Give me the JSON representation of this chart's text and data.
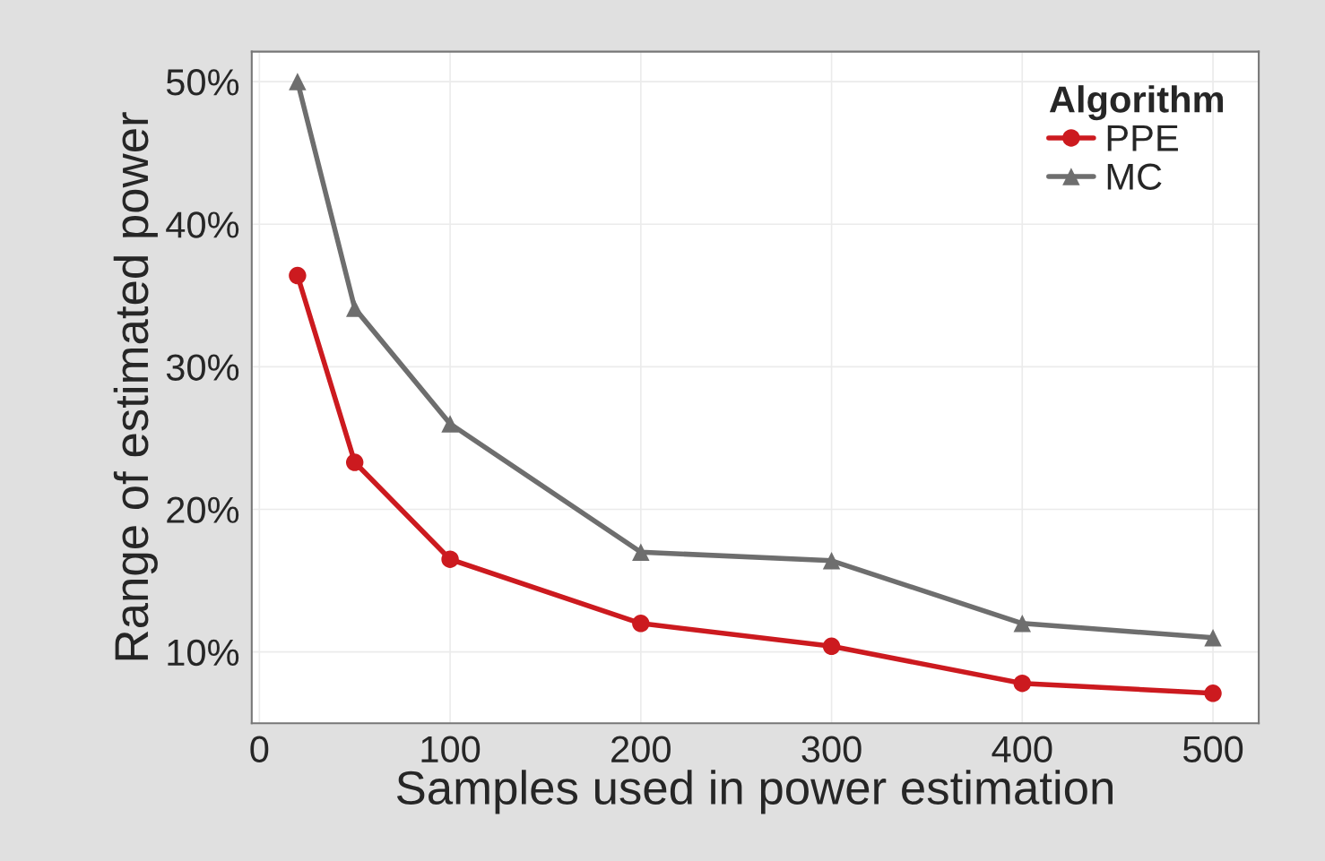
{
  "chart_data": {
    "type": "line",
    "xlabel": "Samples used in power estimation",
    "ylabel": "Range of estimated power",
    "legend_title": "Algorithm",
    "legend": "top right",
    "grid": true,
    "x": [
      20,
      50,
      100,
      200,
      300,
      400,
      500
    ],
    "series": [
      {
        "name": "PPE",
        "color": "#cc1a1f",
        "marker": "circle",
        "values": [
          36.4,
          23.3,
          16.5,
          12.0,
          10.4,
          7.8,
          7.1
        ]
      },
      {
        "name": "MC",
        "color": "#6e6e6e",
        "marker": "triangle",
        "values": [
          50.0,
          34.1,
          26.0,
          17.0,
          16.4,
          12.0,
          11.0
        ]
      }
    ],
    "xlim": [
      -4,
      524
    ],
    "xticks": [
      0,
      100,
      200,
      300,
      400,
      500
    ],
    "ylim": [
      5.0,
      52.1
    ],
    "yticks": [
      {
        "value": 10,
        "label": "10%"
      },
      {
        "value": 20,
        "label": "20%"
      },
      {
        "value": 30,
        "label": "30%"
      },
      {
        "value": 40,
        "label": "40%"
      },
      {
        "value": 50,
        "label": "50%"
      }
    ],
    "line_style": "solid"
  }
}
